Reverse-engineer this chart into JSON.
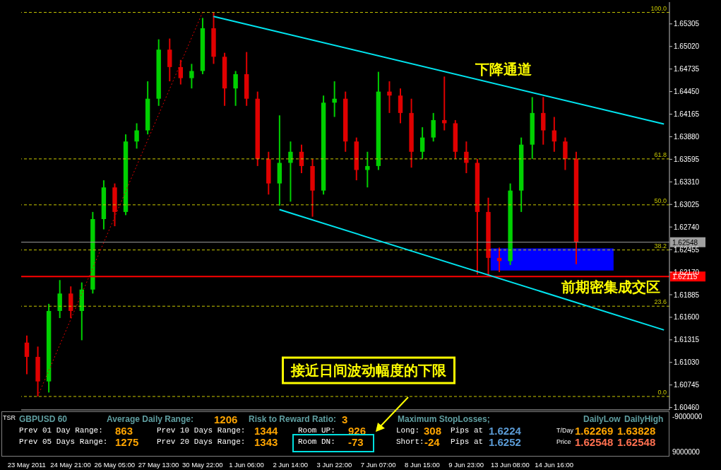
{
  "chart_data": [
    {
      "type": "candlestick",
      "categories": [
        "23 May 2011",
        null,
        null,
        null,
        "24 May 21:00",
        null,
        null,
        null,
        "26 May 05:00",
        null,
        null,
        null,
        "27 May 13:00",
        null,
        null,
        null,
        "30 May 22:00",
        null,
        null,
        null,
        "1 Jun 06:00",
        null,
        null,
        null,
        "2 Jun 14:00",
        null,
        null,
        null,
        "3 Jun 22:00",
        null,
        null,
        null,
        "7 Jun 07:00",
        null,
        null,
        null,
        "8 Jun 15:00",
        null,
        null,
        null,
        "9 Jun 23:00",
        null,
        null,
        null,
        "13 Jun 08:00",
        null,
        null,
        null,
        "14 Jun 16:00",
        null,
        null,
        null,
        null,
        null,
        null,
        null,
        null,
        null,
        null
      ],
      "ohlc": [
        [
          1.6128,
          1.6137,
          1.6088,
          1.611
        ],
        [
          1.611,
          1.6123,
          1.606,
          1.6079
        ],
        [
          1.6079,
          1.6177,
          1.6065,
          1.6168
        ],
        [
          1.6168,
          1.6207,
          1.6159,
          1.619
        ],
        [
          1.619,
          1.6199,
          1.6159,
          1.6168
        ],
        [
          1.6168,
          1.6204,
          1.6131,
          1.6195
        ],
        [
          1.6195,
          1.6293,
          1.619,
          1.6284
        ],
        [
          1.6284,
          1.6333,
          1.6271,
          1.6324
        ],
        [
          1.6324,
          1.6329,
          1.6275,
          1.6293
        ],
        [
          1.6293,
          1.6391,
          1.6289,
          1.6382
        ],
        [
          1.6382,
          1.6405,
          1.6373,
          1.6396
        ],
        [
          1.6396,
          1.6458,
          1.6391,
          1.6436
        ],
        [
          1.6436,
          1.6511,
          1.6427,
          1.6498
        ],
        [
          1.6498,
          1.6512,
          1.6458,
          1.6476
        ],
        [
          1.6476,
          1.6485,
          1.6454,
          1.6462
        ],
        [
          1.6462,
          1.648,
          1.6449,
          1.6471
        ],
        [
          1.6471,
          1.6538,
          1.6467,
          1.6525
        ],
        [
          1.6525,
          1.6545,
          1.648,
          1.6489
        ],
        [
          1.6489,
          1.6494,
          1.6427,
          1.6449
        ],
        [
          1.6449,
          1.6471,
          1.6427,
          1.6467
        ],
        [
          1.6467,
          1.6495,
          1.6427,
          1.6436
        ],
        [
          1.6436,
          1.6445,
          1.6351,
          1.636
        ],
        [
          1.636,
          1.6369,
          1.6315,
          1.6329
        ],
        [
          1.6329,
          1.6415,
          1.6301,
          1.6355
        ],
        [
          1.6355,
          1.6382,
          1.6306,
          1.6369
        ],
        [
          1.6369,
          1.6378,
          1.6342,
          1.6351
        ],
        [
          1.6351,
          1.636,
          1.6287,
          1.632
        ],
        [
          1.632,
          1.644,
          1.6315,
          1.6431
        ],
        [
          1.6431,
          1.6458,
          1.6413,
          1.6436
        ],
        [
          1.6436,
          1.6445,
          1.6369,
          1.6382
        ],
        [
          1.6382,
          1.6387,
          1.6333,
          1.6346
        ],
        [
          1.6346,
          1.6369,
          1.6324,
          1.6351
        ],
        [
          1.6351,
          1.647,
          1.6346,
          1.6445
        ],
        [
          1.6445,
          1.6458,
          1.6418,
          1.644
        ],
        [
          1.644,
          1.6449,
          1.6405,
          1.6418
        ],
        [
          1.6418,
          1.6436,
          1.6349,
          1.6369
        ],
        [
          1.6369,
          1.64,
          1.636,
          1.6387
        ],
        [
          1.6387,
          1.6418,
          1.6382,
          1.6409
        ],
        [
          1.6409,
          1.6464,
          1.6396,
          1.6405
        ],
        [
          1.6405,
          1.6409,
          1.636,
          1.6369
        ],
        [
          1.6369,
          1.6382,
          1.6342,
          1.6355
        ],
        [
          1.6355,
          1.636,
          1.6214,
          1.6293
        ],
        [
          1.6293,
          1.6311,
          1.6213,
          1.6235
        ],
        [
          1.6235,
          1.6248,
          1.6217,
          1.6231
        ],
        [
          1.6231,
          1.6329,
          1.6226,
          1.632
        ],
        [
          1.632,
          1.6387,
          1.6293,
          1.6378
        ],
        [
          1.6378,
          1.6438,
          1.636,
          1.6418
        ],
        [
          1.6418,
          1.6438,
          1.6378,
          1.6396
        ],
        [
          1.6396,
          1.6413,
          1.6369,
          1.6382
        ],
        [
          1.6382,
          1.6387,
          1.6346,
          1.636
        ],
        [
          1.636,
          1.6369,
          1.6227,
          1.6255
        ],
        null,
        null,
        null,
        null,
        null,
        null,
        null,
        null
      ],
      "series": [
        {
          "type": "line",
          "color": "#00e5f0",
          "values": [
            null,
            null,
            null,
            null,
            null,
            null,
            null,
            null,
            null,
            null,
            null,
            null,
            null,
            null,
            null,
            null,
            null,
            1.654,
            null,
            null,
            null,
            null,
            null,
            null,
            null,
            null,
            null,
            null,
            null,
            null,
            null,
            null,
            null,
            null,
            null,
            null,
            null,
            null,
            null,
            null,
            null,
            null,
            null,
            null,
            null,
            null,
            null,
            null,
            null,
            null,
            null,
            null,
            null,
            null,
            null,
            null,
            null,
            null,
            1.6404
          ]
        },
        {
          "type": "line",
          "color": "#00e5f0",
          "values": [
            null,
            null,
            null,
            null,
            null,
            null,
            null,
            null,
            null,
            null,
            null,
            null,
            null,
            null,
            null,
            null,
            null,
            null,
            null,
            null,
            null,
            null,
            null,
            1.6296,
            null,
            null,
            null,
            null,
            null,
            null,
            null,
            null,
            null,
            null,
            null,
            null,
            null,
            null,
            null,
            null,
            null,
            null,
            null,
            null,
            null,
            null,
            null,
            null,
            null,
            null,
            null,
            null,
            null,
            null,
            null,
            null,
            null,
            null,
            1.6144
          ]
        },
        {
          "type": "line",
          "color": "#e00000",
          "line_style": "dotted",
          "values": [
            null,
            1.606,
            null,
            null,
            null,
            null,
            null,
            null,
            null,
            null,
            null,
            null,
            null,
            null,
            null,
            null,
            1.6545,
            null,
            null,
            null,
            null,
            null,
            null,
            null,
            null,
            null,
            null,
            null,
            null,
            null,
            null,
            null,
            null,
            null,
            null,
            null,
            null,
            null,
            null,
            null,
            null,
            null,
            null,
            null,
            null,
            null,
            null,
            null,
            null,
            null,
            null,
            null,
            null,
            null,
            null,
            null,
            null,
            null,
            null
          ]
        }
      ],
      "ylim": [
        1.6043,
        1.6558
      ],
      "yticks": [
        1.65305,
        {
          "value": 1.6502,
          "label": "1.65020"
        },
        1.64735,
        {
          "value": 1.6445,
          "label": "1.64450"
        },
        1.64165,
        {
          "value": 1.6388,
          "label": "1.63880"
        },
        1.63595,
        {
          "value": 1.6331,
          "label": "1.63310"
        },
        1.63025,
        {
          "value": 1.6274,
          "label": "1.62740"
        },
        1.62455,
        {
          "value": 1.6217,
          "label": "1.62170"
        },
        1.61885,
        {
          "value": 1.616,
          "label": "1.61600"
        },
        1.61315,
        {
          "value": 1.6103,
          "label": "1.61030"
        },
        1.60745,
        {
          "value": 1.6046,
          "label": "1.60460"
        }
      ],
      "ref_lines": [
        {
          "axis": "y",
          "value": 1.6545,
          "color": "#c8c800",
          "line_style": "dashed"
        },
        {
          "axis": "y",
          "value": 1.636,
          "color": "#c8c800",
          "line_style": "dashed"
        },
        {
          "axis": "y",
          "value": 1.6302,
          "color": "#c8c800",
          "line_style": "dashed"
        },
        {
          "axis": "y",
          "value": 1.6245,
          "color": "#c8c800",
          "line_style": "dashed"
        },
        {
          "axis": "y",
          "value": 1.6174,
          "color": "#c8c800",
          "line_style": "dashed"
        },
        {
          "axis": "y",
          "value": 1.606,
          "color": "#c8c800",
          "line_style": "dashed"
        },
        {
          "axis": "y",
          "value": 1.62548,
          "label": "1.62548",
          "color": "#a0a0a0"
        },
        {
          "axis": "y",
          "value": 1.62115,
          "label": "1.62115",
          "color": "#ff0000"
        }
      ],
      "bands": [
        {
          "axis": "y",
          "from": 1.6219,
          "to": 1.6247,
          "label": "前期密集成交区",
          "color": "#0000ff"
        }
      ],
      "annotations": [
        "下降通道",
        "接近日间波动幅度的下限",
        {
          "text": "100.0",
          "y": 1.6545
        },
        {
          "text": "61.8",
          "y": 1.636
        },
        {
          "text": "50.0",
          "y": 1.6302
        },
        {
          "text": "38.2",
          "y": 1.6245
        },
        {
          "text": "23.6",
          "y": 1.6174
        },
        {
          "text": "0.0",
          "y": 1.606
        }
      ]
    },
    {
      "type": "other",
      "annotations": [
        "-9000000",
        "9000000",
        "TSR",
        "GBPUSD 60",
        "Average Daily Range:",
        "1206",
        "Risk to Reward Ratio:",
        "3",
        "Maximum StopLosses;",
        "DailyLow",
        "DailyHigh",
        "Prev 01 Day Range:",
        "863",
        "Prev 10 Days Range:",
        "1344",
        "Room UP:",
        "926",
        "Long:",
        "308",
        "Pips at",
        "1.6224",
        "T/Day",
        "1.62269",
        "1.63828",
        "Prev 05 Days Range:",
        "1275",
        "Prev 20 Days Range:",
        "1343",
        "Room DN:",
        "-73",
        "Short:",
        "-24",
        "Pips at",
        "1.6252",
        "Price",
        "1.62548",
        "1.62548"
      ]
    }
  ]
}
